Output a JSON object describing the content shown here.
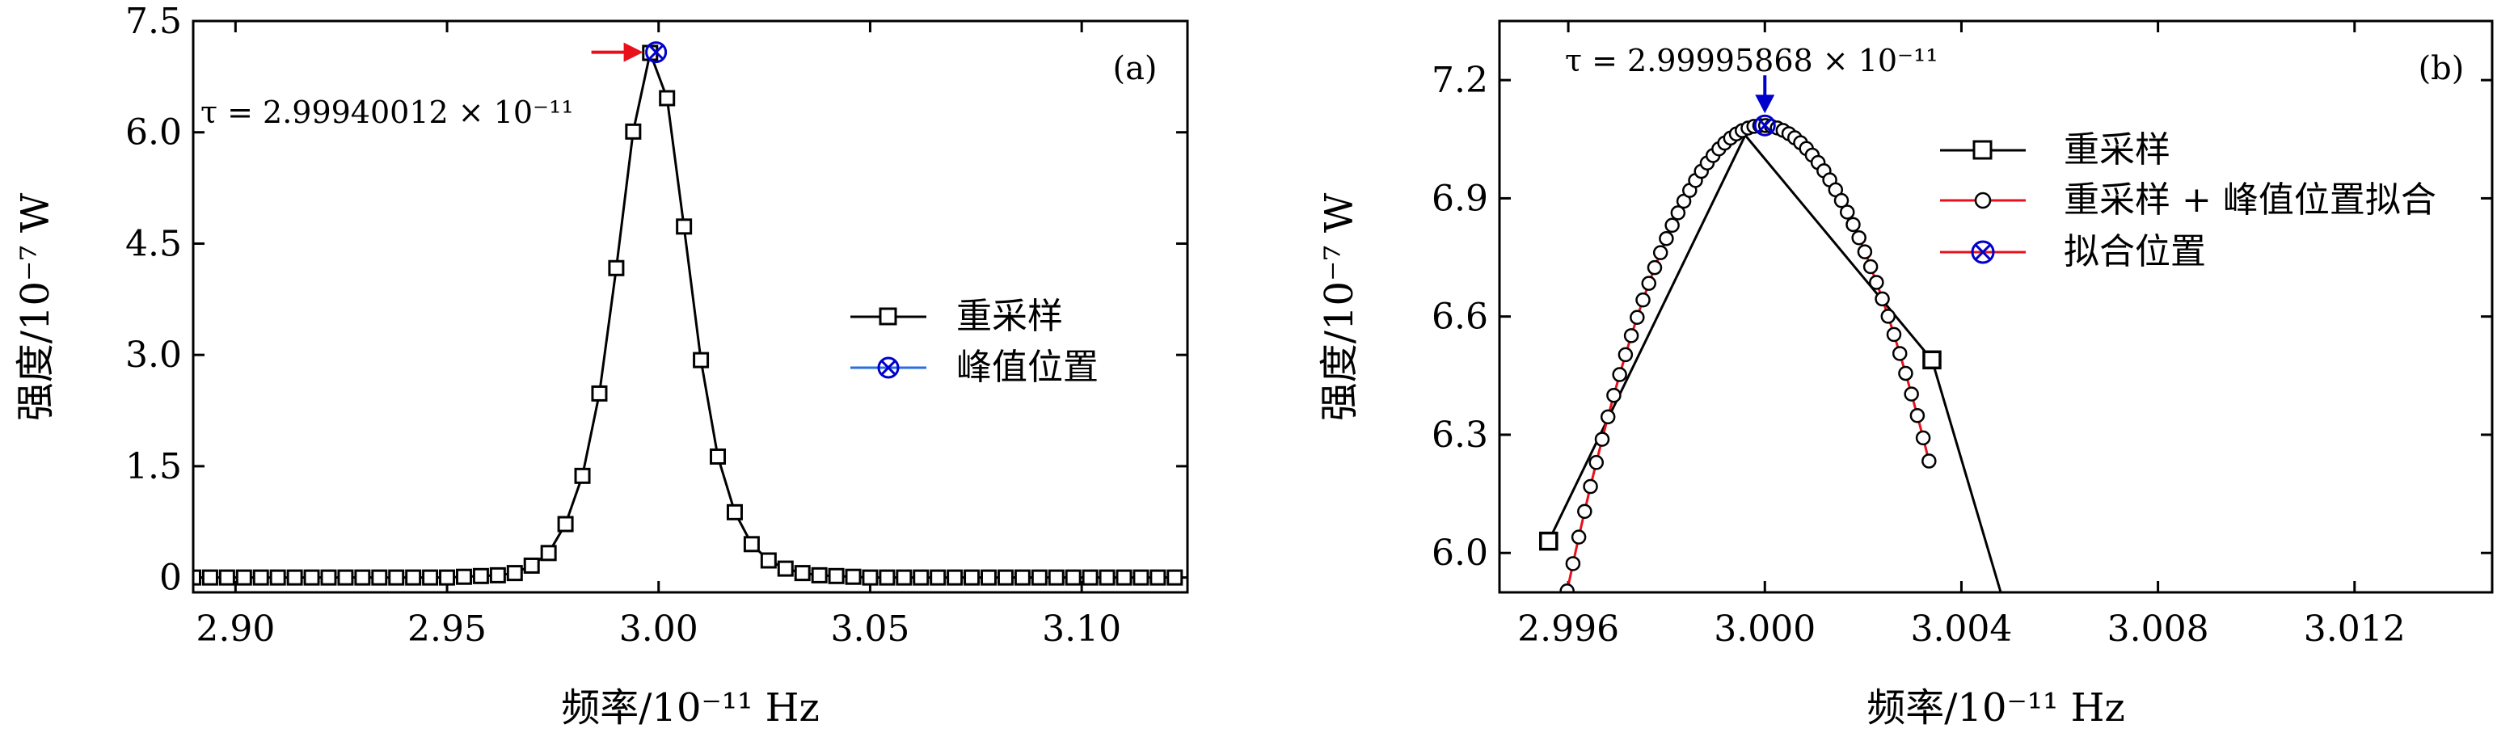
{
  "chart_data": [
    {
      "type": "line",
      "panel_label": "(a)",
      "xlabel": "频率/10⁻¹¹ Hz",
      "ylabel": "强度/10⁻⁷ W",
      "xlim": [
        2.89,
        3.125
      ],
      "ylim": [
        -0.2,
        7.5
      ],
      "xticks": [
        2.9,
        2.95,
        3.0,
        3.05,
        3.1
      ],
      "xtick_labels": [
        "2.90",
        "2.95",
        "3.00",
        "3.05",
        "3.10"
      ],
      "yticks": [
        0,
        1.5,
        3.0,
        4.5,
        6.0,
        7.5
      ],
      "ytick_labels": [
        "0",
        "1.5",
        "3.0",
        "4.5",
        "6.0",
        "7.5"
      ],
      "annotation": "τ = 2.99940012 × 10⁻¹¹",
      "legend": [
        "重采样",
        "峰值位置"
      ],
      "series": [
        {
          "name": "重采样",
          "color": "#000000",
          "marker": "square",
          "x": [
            2.89,
            2.894,
            2.898,
            2.902,
            2.906,
            2.91,
            2.914,
            2.918,
            2.922,
            2.926,
            2.93,
            2.934,
            2.938,
            2.942,
            2.946,
            2.95,
            2.954,
            2.958,
            2.962,
            2.966,
            2.97,
            2.974,
            2.978,
            2.982,
            2.986,
            2.99,
            2.994,
            2.998,
            3.002,
            3.006,
            3.01,
            3.014,
            3.018,
            3.022,
            3.026,
            3.03,
            3.034,
            3.038,
            3.042,
            3.046,
            3.05,
            3.054,
            3.058,
            3.062,
            3.066,
            3.07,
            3.074,
            3.078,
            3.082,
            3.086,
            3.09,
            3.094,
            3.098,
            3.102,
            3.106,
            3.11,
            3.114,
            3.118,
            3.122
          ],
          "values": [
            0,
            0,
            0,
            0,
            0,
            0,
            0,
            0,
            0,
            0,
            0,
            0,
            0,
            0,
            0,
            0,
            0.01,
            0.02,
            0.03,
            0.06,
            0.16,
            0.33,
            0.72,
            1.37,
            2.48,
            4.17,
            6.01,
            7.07,
            6.46,
            4.73,
            2.93,
            1.63,
            0.88,
            0.45,
            0.23,
            0.12,
            0.06,
            0.03,
            0.02,
            0.01,
            0,
            0,
            0,
            0,
            0,
            0,
            0,
            0,
            0,
            0,
            0,
            0,
            0,
            0,
            0,
            0,
            0,
            0,
            0
          ]
        },
        {
          "name": "峰值位置",
          "color": "#0000cc",
          "marker": "circle-x",
          "x": [
            2.9994
          ],
          "values": [
            7.08
          ]
        }
      ],
      "arrow": {
        "x": 2.9994,
        "y": 7.08,
        "direction": "right",
        "color": "#e8101a"
      }
    },
    {
      "type": "line",
      "panel_label": "(b)",
      "xlabel": "频率/10⁻¹¹ Hz",
      "ylabel": "强度/10⁻⁷ W",
      "xlim": [
        2.9946,
        3.0148
      ],
      "ylim": [
        5.9,
        7.35
      ],
      "xticks": [
        2.996,
        3.0,
        3.004,
        3.008,
        3.012
      ],
      "xtick_labels": [
        "2.996",
        "3.000",
        "3.004",
        "3.008",
        "3.012"
      ],
      "yticks": [
        6.0,
        6.3,
        6.6,
        6.9,
        7.2
      ],
      "ytick_labels": [
        "6.0",
        "6.3",
        "6.6",
        "6.9",
        "7.2"
      ],
      "annotation": "τ = 2.99995868 × 10⁻¹¹",
      "legend": [
        "重采样",
        "重采样 + 峰值位置拟合",
        "拟合位置"
      ],
      "series": [
        {
          "name": "重采样",
          "color": "#000000",
          "marker": "square",
          "x": [
            2.9956,
            2.9996,
            3.0034,
            3.0048
          ],
          "values": [
            6.03,
            7.06,
            6.49,
            5.9
          ],
          "marker_indices": [
            0,
            2
          ]
        },
        {
          "name": "重采样 + 峰值位置拟合",
          "color": "#e8101a",
          "marker": "circle",
          "fit": {
            "x0": 2.99995868,
            "ymax": 7.085,
            "k": 74500
          },
          "x_start": 2.99562,
          "x_end": 3.00334,
          "n_points": 66
        },
        {
          "name": "拟合位置",
          "color": "#0000cc",
          "marker": "circle-x",
          "x": [
            3.0
          ],
          "values": [
            7.085
          ]
        }
      ],
      "arrow": {
        "x": 3.0,
        "y": 7.085,
        "direction": "down",
        "color": "#0000cc"
      }
    }
  ]
}
